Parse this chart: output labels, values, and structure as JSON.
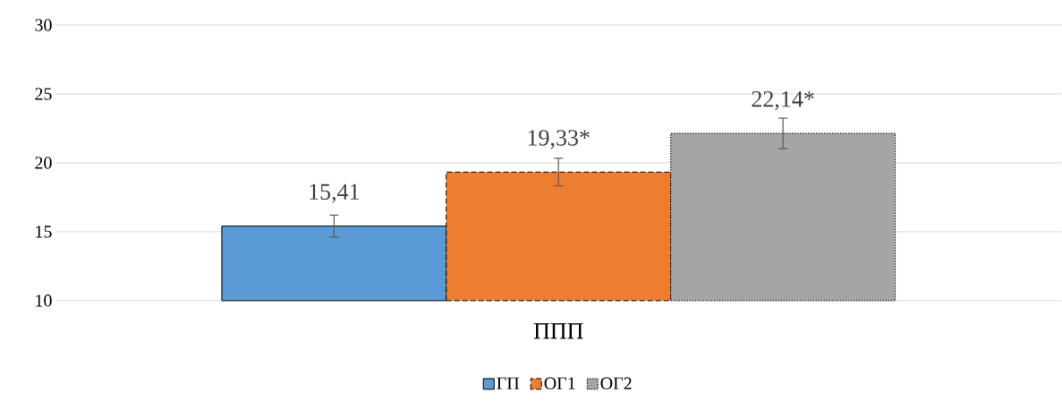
{
  "chart_data": {
    "type": "bar",
    "categories": [
      "ППП"
    ],
    "series": [
      {
        "name": "ГП",
        "color": "#5b9bd5",
        "values": [
          15.41
        ],
        "errors": [
          0.8
        ],
        "value_labels": [
          "15,41"
        ],
        "line_style": "solid"
      },
      {
        "name": "ОГ1",
        "color": "#ed7d31",
        "values": [
          19.33
        ],
        "errors": [
          1.0
        ],
        "value_labels": [
          "19,33*"
        ],
        "line_style": "dashed"
      },
      {
        "name": "ОГ2",
        "color": "#a5a5a5",
        "values": [
          22.14
        ],
        "errors": [
          1.1
        ],
        "value_labels": [
          "22,14*"
        ],
        "line_style": "dotted"
      }
    ],
    "ylim": [
      10,
      30
    ],
    "yticks": [
      10,
      15,
      20,
      25,
      30
    ],
    "grid": "y",
    "legend": "bottom"
  }
}
